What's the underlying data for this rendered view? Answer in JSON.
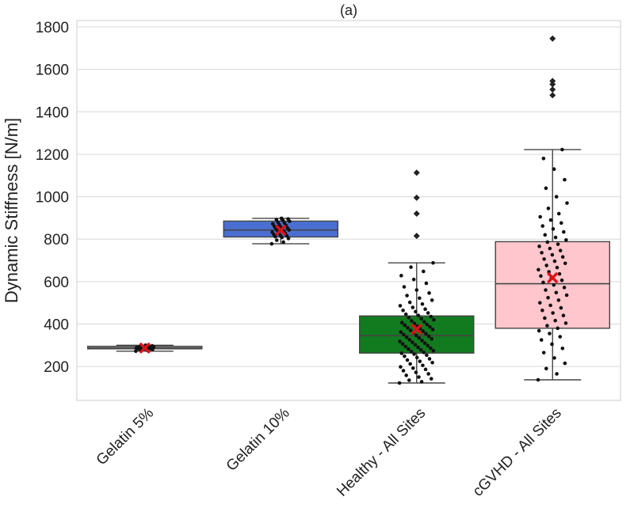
{
  "chart_data": {
    "type": "box",
    "title": "(a)",
    "xlabel": "",
    "ylabel": "Dynamic Stiffness [N/m]",
    "ylim": [
      40,
      1830
    ],
    "yticks": [
      200,
      400,
      600,
      800,
      1000,
      1200,
      1400,
      1600,
      1800
    ],
    "ytick_labels": [
      "200",
      "400",
      "600",
      "800",
      "1000",
      "1200",
      "1400",
      "1600",
      "1800"
    ],
    "grid": true,
    "categories": [
      "Gelatin 5%",
      "Gelatin 10%",
      "Healthy - All Sites",
      "cGVHD - All Sites"
    ],
    "boxes": [
      {
        "category": "Gelatin 5%",
        "color": "#d9d9d9",
        "whisker_low": 272,
        "q1": 283,
        "median": 288,
        "q3": 295,
        "whisker_high": 300,
        "mean": 287,
        "outliers": [],
        "points": [
          272,
          275,
          278,
          280,
          281,
          282,
          283,
          284,
          284,
          285,
          285,
          286,
          286,
          287,
          287,
          287,
          288,
          288,
          288,
          289,
          289,
          290,
          290,
          291,
          292,
          293,
          294,
          295,
          297,
          300
        ]
      },
      {
        "category": "Gelatin 10%",
        "color": "#4a6fd1",
        "whisker_low": 778,
        "q1": 810,
        "median": 843,
        "q3": 885,
        "whisker_high": 898,
        "mean": 842,
        "outliers": [],
        "points": [
          778,
          786,
          795,
          803,
          808,
          812,
          815,
          818,
          822,
          826,
          830,
          833,
          836,
          840,
          843,
          846,
          849,
          852,
          856,
          860,
          864,
          868,
          872,
          876,
          880,
          884,
          888,
          892,
          895,
          898
        ]
      },
      {
        "category": "Healthy - All Sites",
        "color": "#127a1f",
        "whisker_low": 122,
        "q1": 263,
        "median": 345,
        "q3": 438,
        "whisker_high": 688,
        "mean": 375,
        "outliers": [
          815,
          920,
          995,
          1113
        ],
        "points": [
          122,
          128,
          135,
          142,
          150,
          158,
          165,
          172,
          180,
          186,
          192,
          198,
          205,
          212,
          218,
          224,
          230,
          236,
          242,
          248,
          253,
          258,
          262,
          266,
          270,
          274,
          278,
          282,
          286,
          290,
          294,
          298,
          302,
          306,
          310,
          314,
          318,
          322,
          326,
          330,
          334,
          338,
          342,
          346,
          350,
          354,
          358,
          362,
          366,
          370,
          374,
          378,
          382,
          386,
          390,
          394,
          398,
          402,
          406,
          410,
          415,
          420,
          425,
          430,
          435,
          440,
          446,
          452,
          458,
          464,
          470,
          478,
          486,
          494,
          502,
          512,
          522,
          534,
          546,
          560,
          575,
          592,
          610,
          628,
          648,
          668,
          688
        ]
      },
      {
        "category": "cGVHD - All Sites",
        "color": "#ffc7cd",
        "whisker_low": 137,
        "q1": 380,
        "median": 590,
        "q3": 788,
        "whisker_high": 1222,
        "mean": 618,
        "outliers": [
          1478,
          1505,
          1530,
          1545,
          1745
        ],
        "points": [
          137,
          165,
          190,
          215,
          240,
          265,
          285,
          305,
          325,
          340,
          355,
          368,
          380,
          392,
          404,
          416,
          428,
          440,
          452,
          464,
          476,
          488,
          500,
          512,
          524,
          536,
          548,
          560,
          572,
          584,
          596,
          606,
          616,
          626,
          636,
          646,
          656,
          666,
          676,
          686,
          696,
          706,
          716,
          726,
          736,
          746,
          756,
          766,
          776,
          786,
          796,
          808,
          820,
          834,
          848,
          862,
          876,
          890,
          905,
          920,
          945,
          970,
          1000,
          1040,
          1080,
          1130,
          1180,
          1222
        ]
      }
    ]
  }
}
